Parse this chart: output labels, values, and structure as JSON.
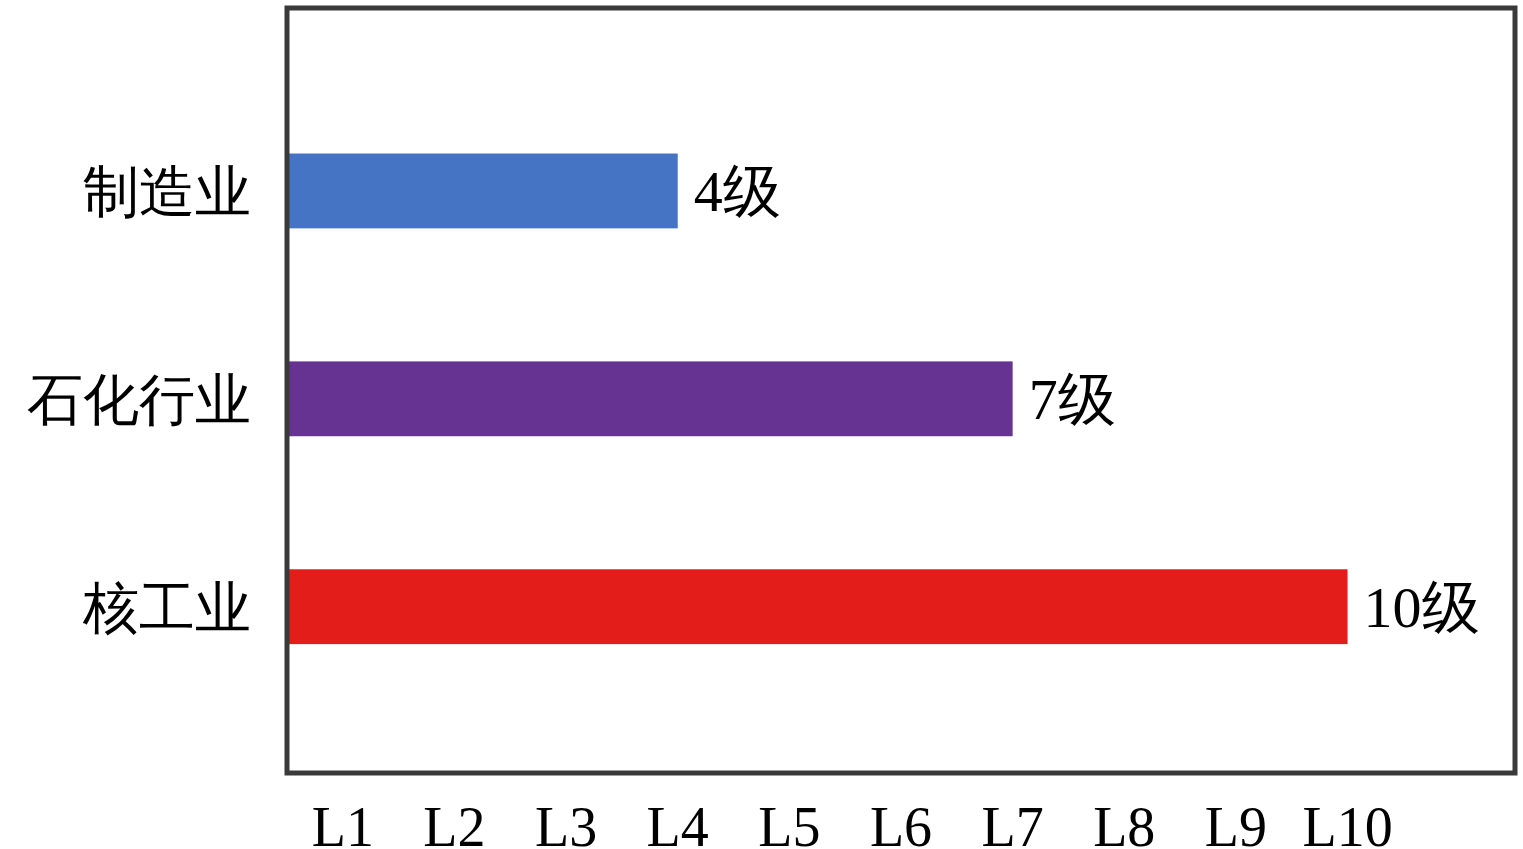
{
  "chart_data": {
    "type": "bar",
    "orientation": "horizontal",
    "categories": [
      "制造业",
      "石化行业",
      "核工业"
    ],
    "values": [
      4,
      7,
      10
    ],
    "colors": [
      "#4674c4",
      "#663393",
      "#e31e1a"
    ],
    "value_labels": [
      "4级",
      "7级",
      "10级"
    ],
    "xlim": [
      0.5,
      11.5
    ],
    "annotations": [
      "L1",
      "L2",
      "L3",
      "L4",
      "L5",
      "L6",
      "L7",
      "L8",
      "L9",
      "L10"
    ]
  }
}
